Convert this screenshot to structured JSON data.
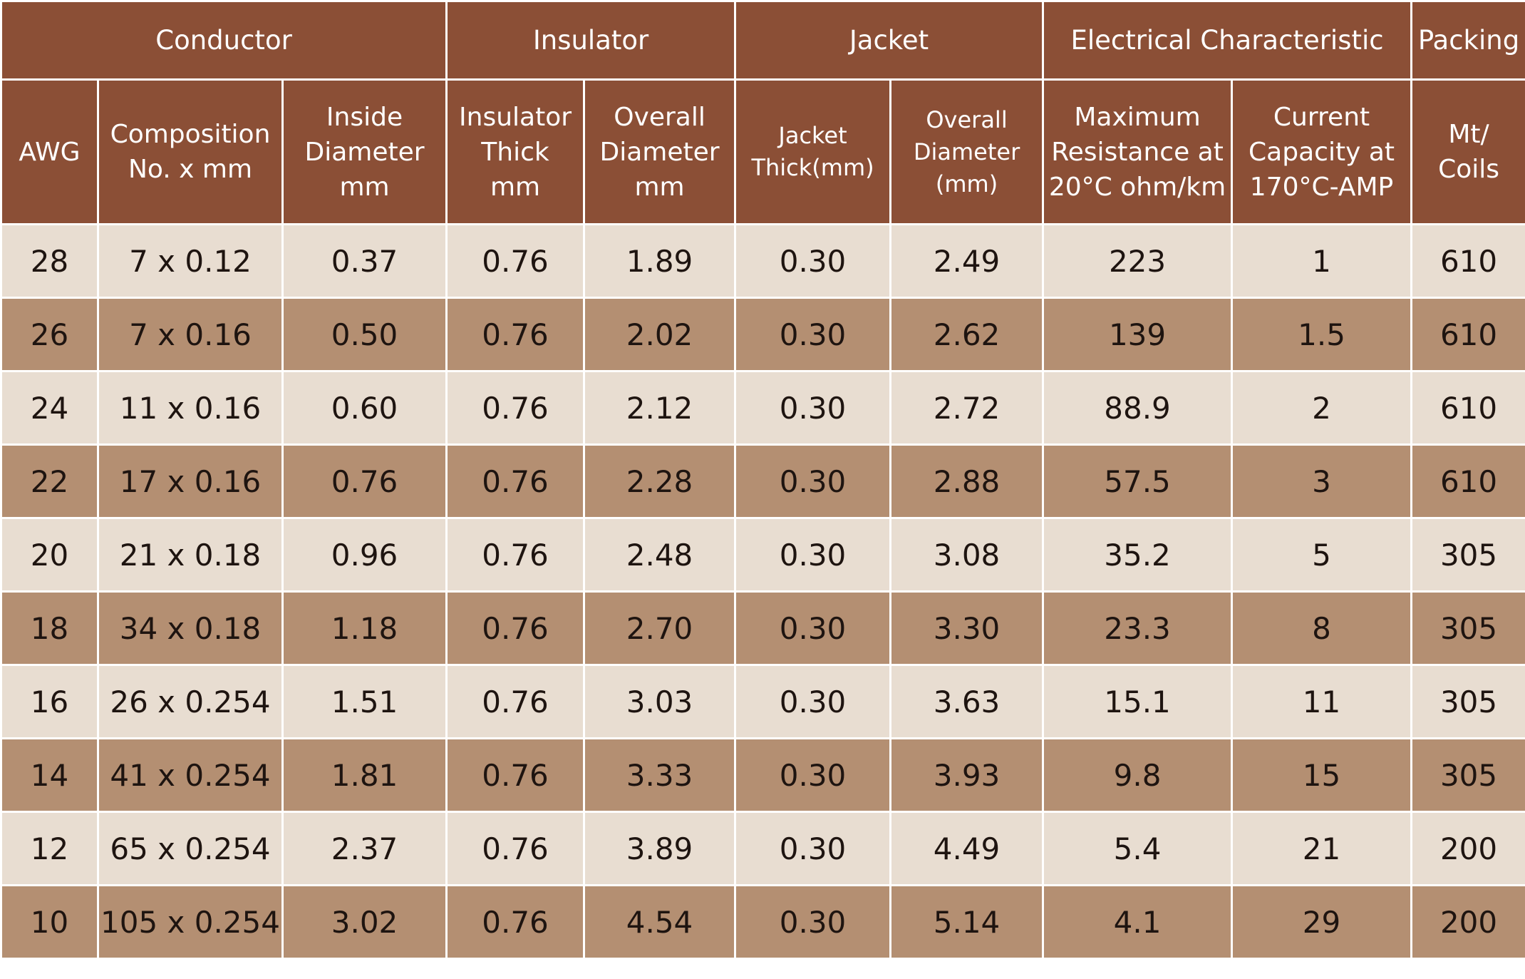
{
  "table": {
    "groups": [
      "Conductor",
      "Insulator",
      "Jacket",
      "Electrical Characteristic",
      "Packing"
    ],
    "columns": [
      [
        "AWG"
      ],
      [
        "Composition",
        "No. x mm"
      ],
      [
        "Inside",
        "Diameter",
        "mm"
      ],
      [
        "Insulator",
        "Thick",
        "mm"
      ],
      [
        "Overall",
        "Diameter",
        "mm"
      ],
      [
        "Jacket",
        "Thick(mm)"
      ],
      [
        "Overall",
        "Diameter",
        "(mm)"
      ],
      [
        "Maximum",
        "Resistance at",
        "20°C ohm/km"
      ],
      [
        "Current",
        "Capacity at",
        "170°C-AMP"
      ],
      [
        "Mt/",
        "Coils"
      ]
    ],
    "rows": [
      [
        "28",
        "7 x 0.12",
        "0.37",
        "0.76",
        "1.89",
        "0.30",
        "2.49",
        "223",
        "1",
        "610"
      ],
      [
        "26",
        "7 x 0.16",
        "0.50",
        "0.76",
        "2.02",
        "0.30",
        "2.62",
        "139",
        "1.5",
        "610"
      ],
      [
        "24",
        "11 x 0.16",
        "0.60",
        "0.76",
        "2.12",
        "0.30",
        "2.72",
        "88.9",
        "2",
        "610"
      ],
      [
        "22",
        "17 x 0.16",
        "0.76",
        "0.76",
        "2.28",
        "0.30",
        "2.88",
        "57.5",
        "3",
        "610"
      ],
      [
        "20",
        "21 x 0.18",
        "0.96",
        "0.76",
        "2.48",
        "0.30",
        "3.08",
        "35.2",
        "5",
        "305"
      ],
      [
        "18",
        "34 x 0.18",
        "1.18",
        "0.76",
        "2.70",
        "0.30",
        "3.30",
        "23.3",
        "8",
        "305"
      ],
      [
        "16",
        "26 x 0.254",
        "1.51",
        "0.76",
        "3.03",
        "0.30",
        "3.63",
        "15.1",
        "11",
        "305"
      ],
      [
        "14",
        "41 x 0.254",
        "1.81",
        "0.76",
        "3.33",
        "0.30",
        "3.93",
        "9.8",
        "15",
        "305"
      ],
      [
        "12",
        "65 x 0.254",
        "2.37",
        "0.76",
        "3.89",
        "0.30",
        "4.49",
        "5.4",
        "21",
        "200"
      ],
      [
        "10",
        "105 x 0.254",
        "3.02",
        "0.76",
        "4.54",
        "0.30",
        "5.14",
        "4.1",
        "29",
        "200"
      ]
    ]
  },
  "colors": {
    "header_bg": "#8b4f36",
    "header_text": "#ffffff",
    "row_light": "#e8ddd1",
    "row_dark": "#b48f72",
    "cell_text": "#1e1410"
  }
}
